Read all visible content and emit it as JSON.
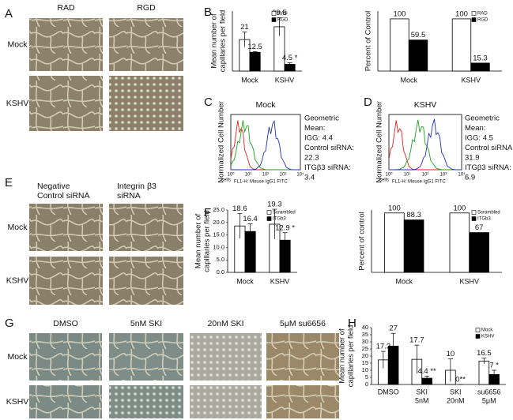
{
  "panel_labels": [
    "A",
    "B",
    "C",
    "D",
    "E",
    "F",
    "G",
    "H"
  ],
  "panel_a": {
    "columns": [
      "RAD",
      "RGD"
    ],
    "rows": [
      "Mock",
      "KSHV"
    ]
  },
  "panel_e": {
    "columns": [
      [
        "Negative",
        "Control siRNA"
      ],
      [
        "Integrin β3",
        "siRNA"
      ]
    ],
    "rows": [
      "Mock",
      "KSHV"
    ]
  },
  "panel_g": {
    "columns": [
      "DMSO",
      "5nM SKI",
      "20nM SKI",
      "5μM su6656"
    ],
    "rows": [
      "Mock",
      "KSHV"
    ]
  },
  "flow": [
    {
      "title": "Mock",
      "y_label": "Normalized Cell Number",
      "x_label": "FL1-H: Mouse IgG1 FITC",
      "corner": "cells",
      "x_ticks": [
        "10⁰",
        "10¹",
        "10²",
        "10³",
        "10⁴"
      ],
      "stats": [
        "Geometric",
        "Mean:",
        "IGG: 4.4",
        "Control siRNA:",
        "22.3",
        "ITGβ3 siRNA:",
        "3.4"
      ]
    },
    {
      "title": "KSHV",
      "y_label": "Normalized Cell Number",
      "x_label": "FL1-H: Mouse IgG1 FITC",
      "corner": "cells",
      "x_ticks": [
        "10⁰",
        "10¹",
        "10²",
        "10³",
        "10⁴"
      ],
      "stats": [
        "Geometric",
        "Mean:",
        "IGG: 4.5",
        "Control siRNA:",
        "31.9",
        "ITGβ3 siRNA:",
        "6.9"
      ]
    }
  ],
  "chart_data": [
    {
      "type": "bar",
      "y_label": [
        "Mean number of",
        "capillaries per field"
      ],
      "categories": [
        "Mock",
        "KSHV"
      ],
      "ylim": [
        0,
        40
      ],
      "legend": "upper right",
      "series": [
        {
          "name": "RAD",
          "color": "#ffffff",
          "values": [
            21,
            29.5
          ],
          "errors": [
            5,
            6
          ]
        },
        {
          "name": "RGD",
          "color": "#000000",
          "values": [
            12.5,
            4.5
          ],
          "errors": [
            0.5,
            1
          ],
          "value_labels": [
            "12.5",
            "4.5 *"
          ]
        }
      ]
    },
    {
      "type": "bar",
      "y_label": [
        "Percent of Control"
      ],
      "categories": [
        "Mock",
        "KSHV"
      ],
      "ylim": [
        0,
        115
      ],
      "legend": "upper right",
      "series": [
        {
          "name": "RAD",
          "color": "#ffffff",
          "values": [
            100,
            100
          ]
        },
        {
          "name": "RGD",
          "color": "#000000",
          "values": [
            59.5,
            15.3
          ]
        }
      ]
    },
    {
      "type": "bar",
      "y_label": [
        "Mean number of",
        "capillaries per field"
      ],
      "categories": [
        "Mock",
        "KSHV"
      ],
      "ylim": [
        0,
        25
      ],
      "legend": "upper right",
      "yticks": [
        {
          "value": 0,
          "label": "0.0"
        },
        {
          "value": 5,
          "label": "5.0"
        },
        {
          "value": 10,
          "label": "10.0"
        },
        {
          "value": 15,
          "label": "15.0"
        },
        {
          "value": 20,
          "label": "20.0"
        },
        {
          "value": 25,
          "label": "25.0"
        }
      ],
      "series": [
        {
          "name": "Scrambled",
          "color": "#ffffff",
          "values": [
            18.6,
            19.3
          ],
          "errors": [
            5,
            6
          ]
        },
        {
          "name": "ITGb3",
          "color": "#000000",
          "values": [
            16.4,
            12.9
          ],
          "errors": [
            3,
            3
          ],
          "value_labels": [
            "16.4",
            "12.9 *"
          ]
        }
      ]
    },
    {
      "type": "bar",
      "y_label": [
        "Percent of control"
      ],
      "categories": [
        "Mock",
        "KSHV"
      ],
      "ylim": [
        0,
        105
      ],
      "legend": "upper right",
      "series": [
        {
          "name": "Scrambled",
          "color": "#ffffff",
          "values": [
            100,
            100
          ]
        },
        {
          "name": "ITGb3",
          "color": "#000000",
          "values": [
            88.3,
            67
          ]
        }
      ]
    },
    {
      "type": "bar",
      "y_label": [
        "Mean number of",
        "capillaries per field"
      ],
      "categories": [
        [
          "DMSO"
        ],
        [
          "SKI",
          "5nM"
        ],
        [
          "SKI",
          "20nM"
        ],
        [
          "su6656",
          "5μM"
        ]
      ],
      "ylim": [
        0,
        40
      ],
      "yticks": [
        0,
        5,
        10,
        15,
        20,
        25,
        30,
        35,
        40
      ],
      "legend": "upper right",
      "series": [
        {
          "name": "Mock",
          "color": "#ffffff",
          "values": [
            17.3,
            17.7,
            10,
            16.5
          ],
          "errors": [
            6,
            10,
            8,
            2
          ]
        },
        {
          "name": "KSHV",
          "color": "#000000",
          "values": [
            27,
            4.4,
            0,
            7
          ],
          "errors": [
            9,
            1.5,
            0,
            3
          ],
          "value_labels": [
            "27",
            "4.4 **",
            "0**",
            "7 *"
          ]
        }
      ]
    }
  ]
}
